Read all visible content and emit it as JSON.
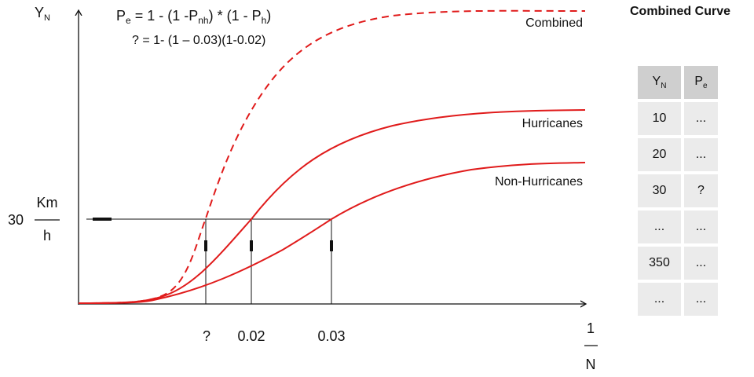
{
  "chart_data": {
    "type": "line",
    "ylabel": "Y",
    "ylabel_sub": "N",
    "xlabel_num": "1",
    "xlabel_den": "N",
    "ytick_value": "30",
    "ytick_unit_num": "Km",
    "ytick_unit_den": "h",
    "x_ticks": [
      "?",
      "0.02",
      "0.03"
    ],
    "formula_line1": {
      "a": "P",
      "a_sub": "e",
      "b": " = 1 - (1 -P",
      "b_sub": "nh",
      "c": ") * (1 - P",
      "c_sub": "h",
      "d": ")"
    },
    "formula_line2": "? = 1- (1 – 0.03)(1-0.02)",
    "series": [
      {
        "name": "Combined",
        "style": "dashed",
        "color": "#e01b1b"
      },
      {
        "name": "Hurricanes",
        "style": "solid",
        "color": "#e01b1b"
      },
      {
        "name": "Non-Hurricanes",
        "style": "solid",
        "color": "#e01b1b"
      }
    ]
  },
  "table": {
    "title": "Combined Curve",
    "header": {
      "col1": "Y",
      "col1_sub": "N",
      "col2": "P",
      "col2_sub": "e"
    },
    "rows": [
      {
        "yn": "10",
        "pe": "..."
      },
      {
        "yn": "20",
        "pe": "..."
      },
      {
        "yn": "30",
        "pe": "?"
      },
      {
        "yn": "...",
        "pe": "..."
      },
      {
        "yn": "350",
        "pe": "..."
      },
      {
        "yn": "...",
        "pe": "..."
      }
    ]
  }
}
